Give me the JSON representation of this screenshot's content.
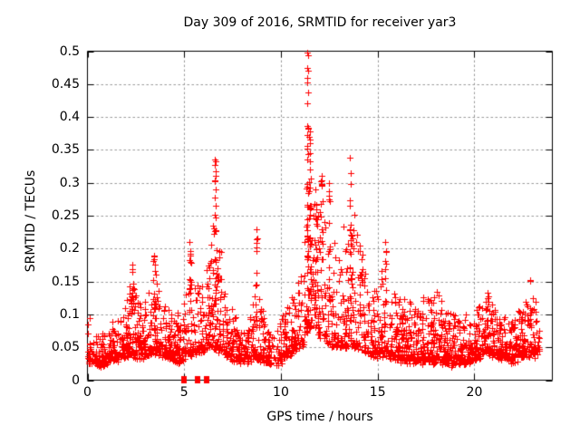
{
  "chart_data": {
    "type": "scatter",
    "title": "Day 309 of 2016, SRMTID for receiver yar3",
    "xlabel": "GPS time / hours",
    "ylabel": "SRMTID / TECUs",
    "xlim": [
      0,
      24.03
    ],
    "ylim": [
      0,
      0.5
    ],
    "xticks": [
      {
        "v": 0,
        "label": "0"
      },
      {
        "v": 5,
        "label": "5"
      },
      {
        "v": 10,
        "label": "10"
      },
      {
        "v": 15,
        "label": "15"
      },
      {
        "v": 20,
        "label": "20"
      }
    ],
    "yticks": [
      {
        "v": 0,
        "label": "0"
      },
      {
        "v": 0.05,
        "label": "0.05"
      },
      {
        "v": 0.1,
        "label": "0.1"
      },
      {
        "v": 0.15,
        "label": "0.15"
      },
      {
        "v": 0.2,
        "label": "0.2"
      },
      {
        "v": 0.25,
        "label": "0.25"
      },
      {
        "v": 0.3,
        "label": "0.3"
      },
      {
        "v": 0.35,
        "label": "0.35"
      },
      {
        "v": 0.4,
        "label": "0.4"
      },
      {
        "v": 0.45,
        "label": "0.45"
      },
      {
        "v": 0.5,
        "label": "0.5"
      }
    ],
    "grid": true,
    "marker": "plus",
    "marker_size": 7,
    "marker_color": "#ff0000",
    "grid_color": "#999999",
    "border_color": "#000000",
    "background": "#ffffff",
    "seed": 309,
    "n_baseline": 2500,
    "t_min": 0,
    "t_max": 23.35,
    "envelope": [
      [
        0.0,
        0.03,
        0.08
      ],
      [
        0.7,
        0.025,
        0.068
      ],
      [
        1.3,
        0.03,
        0.085
      ],
      [
        1.8,
        0.038,
        0.1
      ],
      [
        2.3,
        0.04,
        0.16
      ],
      [
        2.7,
        0.035,
        0.11
      ],
      [
        3.45,
        0.045,
        0.175
      ],
      [
        3.9,
        0.04,
        0.13
      ],
      [
        4.3,
        0.035,
        0.125
      ],
      [
        4.8,
        0.03,
        0.092
      ],
      [
        5.3,
        0.04,
        0.185
      ],
      [
        5.8,
        0.045,
        0.15
      ],
      [
        6.3,
        0.05,
        0.185
      ],
      [
        6.65,
        0.05,
        0.29
      ],
      [
        7.1,
        0.04,
        0.13
      ],
      [
        7.7,
        0.03,
        0.088
      ],
      [
        8.3,
        0.03,
        0.078
      ],
      [
        8.75,
        0.035,
        0.17
      ],
      [
        9.2,
        0.03,
        0.082
      ],
      [
        9.8,
        0.025,
        0.072
      ],
      [
        10.3,
        0.04,
        0.12
      ],
      [
        10.8,
        0.05,
        0.14
      ],
      [
        11.2,
        0.06,
        0.19
      ],
      [
        11.45,
        0.085,
        0.43
      ],
      [
        11.7,
        0.08,
        0.33
      ],
      [
        12.0,
        0.07,
        0.26
      ],
      [
        12.45,
        0.06,
        0.28
      ],
      [
        12.9,
        0.05,
        0.19
      ],
      [
        13.6,
        0.055,
        0.29
      ],
      [
        14.1,
        0.05,
        0.21
      ],
      [
        14.6,
        0.04,
        0.13
      ],
      [
        15.1,
        0.04,
        0.15
      ],
      [
        15.45,
        0.04,
        0.195
      ],
      [
        15.9,
        0.035,
        0.13
      ],
      [
        16.5,
        0.03,
        0.12
      ],
      [
        17.3,
        0.03,
        0.125
      ],
      [
        18.2,
        0.03,
        0.13
      ],
      [
        19.0,
        0.025,
        0.1
      ],
      [
        19.8,
        0.03,
        0.095
      ],
      [
        20.6,
        0.04,
        0.13
      ],
      [
        21.3,
        0.035,
        0.1
      ],
      [
        22.0,
        0.03,
        0.092
      ],
      [
        22.6,
        0.04,
        0.115
      ],
      [
        22.95,
        0.04,
        0.15
      ],
      [
        23.35,
        0.04,
        0.1
      ]
    ],
    "gaps": [
      [
        9.5,
        9.85,
        0.45
      ],
      [
        11.02,
        11.2,
        0.35
      ]
    ],
    "spikes": [
      [
        2.3,
        0.06,
        0.09,
        0.175,
        10
      ],
      [
        3.45,
        0.06,
        0.1,
        0.19,
        12
      ],
      [
        5.3,
        0.05,
        0.1,
        0.21,
        12
      ],
      [
        6.6,
        0.05,
        0.12,
        0.335,
        16
      ],
      [
        8.75,
        0.04,
        0.08,
        0.215,
        9
      ],
      [
        11.38,
        0.04,
        0.12,
        0.5,
        26
      ],
      [
        11.52,
        0.05,
        0.12,
        0.39,
        22
      ],
      [
        11.8,
        0.05,
        0.1,
        0.3,
        12
      ],
      [
        12.1,
        0.05,
        0.1,
        0.31,
        14
      ],
      [
        12.5,
        0.05,
        0.12,
        0.3,
        14
      ],
      [
        13.6,
        0.05,
        0.1,
        0.315,
        16
      ],
      [
        14.1,
        0.04,
        0.08,
        0.22,
        8
      ],
      [
        15.4,
        0.05,
        0.08,
        0.21,
        10
      ],
      [
        18.3,
        0.04,
        0.06,
        0.14,
        6
      ],
      [
        20.7,
        0.04,
        0.06,
        0.135,
        6
      ],
      [
        22.9,
        0.04,
        0.06,
        0.152,
        6
      ]
    ],
    "notable_points": [
      [
        11.38,
        0.498
      ],
      [
        11.36,
        0.474
      ],
      [
        11.4,
        0.47
      ],
      [
        11.37,
        0.452
      ],
      [
        11.39,
        0.438
      ],
      [
        11.36,
        0.421
      ],
      [
        11.38,
        0.386
      ],
      [
        11.35,
        0.352
      ],
      [
        11.42,
        0.344
      ],
      [
        11.5,
        0.345
      ],
      [
        11.52,
        0.332
      ],
      [
        11.48,
        0.32
      ],
      [
        6.6,
        0.335
      ],
      [
        6.61,
        0.318
      ],
      [
        6.58,
        0.302
      ],
      [
        6.62,
        0.29
      ],
      [
        6.59,
        0.278
      ],
      [
        6.63,
        0.265
      ],
      [
        6.6,
        0.252
      ],
      [
        13.58,
        0.338
      ],
      [
        13.6,
        0.315
      ],
      [
        13.62,
        0.298
      ],
      [
        12.1,
        0.31
      ],
      [
        12.12,
        0.296
      ],
      [
        12.48,
        0.3
      ],
      [
        12.5,
        0.287
      ],
      [
        12.52,
        0.272
      ],
      [
        8.74,
        0.23
      ],
      [
        8.76,
        0.215
      ],
      [
        8.73,
        0.196
      ],
      [
        5.28,
        0.21
      ],
      [
        5.3,
        0.196
      ],
      [
        15.4,
        0.21
      ],
      [
        15.42,
        0.196
      ],
      [
        11.2,
        0.21
      ],
      [
        2.3,
        0.176
      ],
      [
        3.45,
        0.19
      ],
      [
        22.9,
        0.152
      ],
      [
        0.1,
        0.095
      ]
    ],
    "zero_markers": [
      5.01,
      5.69,
      6.16
    ]
  }
}
